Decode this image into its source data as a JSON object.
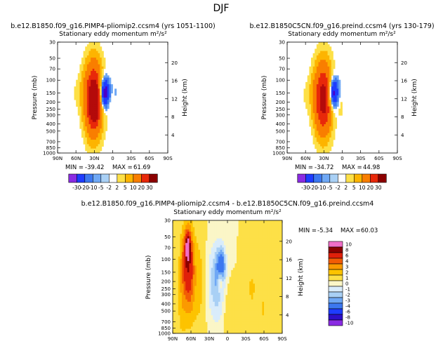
{
  "suptitle": "DJF",
  "colors": {
    "top_scale": [
      "#8a2be2",
      "#4b00c8",
      "#1e3cff",
      "#3c78f0",
      "#6fa8f5",
      "#a9d0f5",
      "#d9ecfb",
      "#fdf3b0",
      "#fde047",
      "#fdb400",
      "#f97e00",
      "#e8280a",
      "#b40a0a",
      "#8b0000",
      "#f06ec8"
    ],
    "diff_scale": [
      "#8a2be2",
      "#2d0fc8",
      "#1e3cff",
      "#3c78f0",
      "#6fa8f5",
      "#a9d0f5",
      "#d9ecfb",
      "#fbf6c7",
      "#fde047",
      "#fdc300",
      "#fb9a00",
      "#f25c05",
      "#e0200a",
      "#8b0000",
      "#f06ec8"
    ]
  },
  "chart_data": [
    {
      "type": "heatmap",
      "title": "b.e12.B1850.f09_g16.PIMP4-pliomip2.ccsm4 (yrs 1051-1100)",
      "subtitle": "Stationary eddy momentum",
      "units": "m²/s²",
      "ylabel": "Pressure (mb)",
      "y2label": "Height (km)",
      "x_ticks": [
        "90N",
        "60N",
        "30N",
        "0",
        "30S",
        "60S",
        "90S"
      ],
      "x_values": [
        90,
        60,
        30,
        0,
        -30,
        -60,
        -90
      ],
      "xlim": [
        90,
        -90
      ],
      "y_ticks": [
        "30",
        "50",
        "70",
        "100",
        "150",
        "200",
        "250",
        "300",
        "400",
        "500",
        "700",
        "850",
        "1000"
      ],
      "y_values": [
        30,
        50,
        70,
        100,
        150,
        200,
        250,
        300,
        400,
        500,
        700,
        850,
        1000
      ],
      "ylim": [
        30,
        1000
      ],
      "y2_ticks": [
        "20",
        "16",
        "12",
        "8",
        "4"
      ],
      "y2_values": [
        20,
        16,
        12,
        8,
        4
      ],
      "min_label": "MIN =",
      "min_value": "-39.42",
      "max_label": "MAX =",
      "max_value": "61.69",
      "blobs": [
        {
          "lat": 60,
          "p": 150,
          "rx": 6,
          "ry": 0.55,
          "v": 2
        },
        {
          "lat": 48,
          "p": 140,
          "rx": 7,
          "ry": 0.7,
          "v": 3
        },
        {
          "lat": 31,
          "p": 180,
          "rx": 14,
          "ry": 1.1,
          "v": 40
        },
        {
          "lat": 30,
          "p": 210,
          "rx": 6,
          "ry": 0.45,
          "v": 30
        },
        {
          "lat": 13,
          "p": 150,
          "rx": 8,
          "ry": 0.45,
          "v": -32
        },
        {
          "lat": 4,
          "p": 200,
          "rx": 5,
          "ry": 0.5,
          "v": 4
        },
        {
          "lat": -5,
          "p": 150,
          "rx": 6,
          "ry": 0.6,
          "v": -2
        },
        {
          "lat": -70,
          "p": 250,
          "rx": 8,
          "ry": 0.9,
          "v": -1.2
        },
        {
          "lat": -75,
          "p": 70,
          "rx": 10,
          "ry": 0.8,
          "v": -1
        }
      ]
    },
    {
      "type": "heatmap",
      "title": "b.e12.B1850C5CN.f09_g16.preind.ccsm4 (yrs 130-179)",
      "subtitle": "Stationary eddy momentum",
      "units": "m²/s²",
      "ylabel": "Pressure (mb)",
      "y2label": "Height (km)",
      "x_ticks": [
        "90N",
        "60N",
        "30N",
        "0",
        "30S",
        "60S",
        "90S"
      ],
      "x_values": [
        90,
        60,
        30,
        0,
        -30,
        -60,
        -90
      ],
      "xlim": [
        90,
        -90
      ],
      "y_ticks": [
        "30",
        "50",
        "70",
        "100",
        "150",
        "200",
        "250",
        "300",
        "400",
        "500",
        "700",
        "850",
        "1000"
      ],
      "y_values": [
        30,
        50,
        70,
        100,
        150,
        200,
        250,
        300,
        400,
        500,
        700,
        850,
        1000
      ],
      "ylim": [
        30,
        1000
      ],
      "y2_ticks": [
        "20",
        "16",
        "12",
        "8",
        "4"
      ],
      "y2_values": [
        20,
        16,
        12,
        8,
        4
      ],
      "min_label": "MIN =",
      "min_value": "-34.72",
      "max_label": "MAX =",
      "max_value": "44.98",
      "blobs": [
        {
          "lat": 60,
          "p": 160,
          "rx": 6,
          "ry": 0.6,
          "v": 2
        },
        {
          "lat": 48,
          "p": 140,
          "rx": 7,
          "ry": 0.7,
          "v": 3
        },
        {
          "lat": 31,
          "p": 180,
          "rx": 14,
          "ry": 1.1,
          "v": 36
        },
        {
          "lat": 14,
          "p": 150,
          "rx": 8,
          "ry": 0.45,
          "v": -28
        },
        {
          "lat": 3,
          "p": 200,
          "rx": 5,
          "ry": 0.5,
          "v": 4
        },
        {
          "lat": -6,
          "p": 150,
          "rx": 6,
          "ry": 0.6,
          "v": -2
        },
        {
          "lat": -72,
          "p": 200,
          "rx": 9,
          "ry": 0.9,
          "v": -1.2
        },
        {
          "lat": -70,
          "p": 60,
          "rx": 10,
          "ry": 0.8,
          "v": -1
        }
      ]
    },
    {
      "type": "heatmap",
      "title": "b.e12.B1850.f09_g16.PIMP4-pliomip2.ccsm4 - b.e12.B1850C5CN.f09_g16.preind.ccsm4",
      "subtitle": "Stationary eddy momentum",
      "units": "m²/s²",
      "ylabel": "Pressure (mb)",
      "y2label": "Height (km)",
      "x_ticks": [
        "90N",
        "60N",
        "30N",
        "0",
        "30S",
        "60S",
        "90S"
      ],
      "x_values": [
        90,
        60,
        30,
        0,
        -30,
        -60,
        -90
      ],
      "xlim": [
        90,
        -90
      ],
      "y_ticks": [
        "30",
        "50",
        "70",
        "100",
        "150",
        "200",
        "250",
        "300",
        "400",
        "500",
        "700",
        "850",
        "1000"
      ],
      "y_values": [
        30,
        50,
        70,
        100,
        150,
        200,
        250,
        300,
        400,
        500,
        700,
        850,
        1000
      ],
      "ylim": [
        30,
        1000
      ],
      "y2_ticks": [
        "20",
        "16",
        "12",
        "8",
        "4"
      ],
      "y2_values": [
        20,
        16,
        12,
        8,
        4
      ],
      "min_label": "MIN =",
      "min_value": "-5.34",
      "max_label": "MAX =",
      "max_value": "60.03",
      "blobs": [
        {
          "lat": 65,
          "p": 90,
          "rx": 9,
          "ry": 1.0,
          "v": 5
        },
        {
          "lat": 65,
          "p": 70,
          "rx": 3,
          "ry": 0.3,
          "v": 9
        },
        {
          "lat": 62,
          "p": 250,
          "rx": 10,
          "ry": 1.2,
          "v": 2.5
        },
        {
          "lat": 75,
          "p": 300,
          "rx": 8,
          "ry": 1.5,
          "v": 1.5
        },
        {
          "lat": 45,
          "p": 200,
          "rx": 10,
          "ry": 1.8,
          "v": 1.2
        },
        {
          "lat": 18,
          "p": 200,
          "rx": 14,
          "ry": 1.2,
          "v": -3
        },
        {
          "lat": 10,
          "p": 120,
          "rx": 7,
          "ry": 0.5,
          "v": -4
        },
        {
          "lat": 12,
          "p": 200,
          "rx": 4,
          "ry": 0.3,
          "v": 3
        },
        {
          "lat": -2,
          "p": 500,
          "rx": 8,
          "ry": 0.9,
          "v": 1.2
        },
        {
          "lat": -40,
          "p": 250,
          "rx": 12,
          "ry": 1.0,
          "v": 1.1
        },
        {
          "lat": -60,
          "p": 500,
          "rx": 8,
          "ry": 1.2,
          "v": 1.0
        }
      ]
    }
  ],
  "colorbar_top": {
    "labels": [
      "-30",
      "-20",
      "-10",
      "-5",
      "-2",
      "2",
      "5",
      "10",
      "20",
      "30"
    ]
  },
  "colorbar_diff": {
    "labels": [
      "10",
      "8",
      "6",
      "4",
      "3",
      "2",
      "1",
      "0",
      "-1",
      "-2",
      "-3",
      "-4",
      "-6",
      "-8",
      "-10"
    ]
  }
}
